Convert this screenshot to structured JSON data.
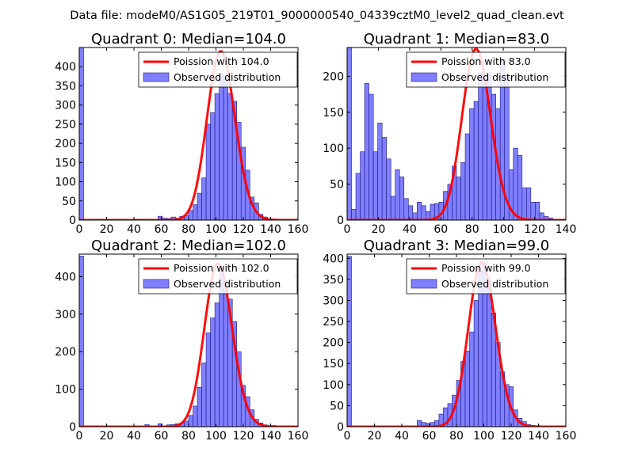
{
  "figure": {
    "suptitle": "Data file: modeM0/AS1G05_219T01_9000000540_04339cztM0_level2_quad_clean.evt"
  },
  "colors": {
    "fit_line": "#ff0000",
    "hist_fill": "#7f7fff",
    "hist_edge": "#1a1a80"
  },
  "chart_data": [
    {
      "type": "bar",
      "title": "Quadrant 0: Median=104.0",
      "xlim": [
        0,
        160
      ],
      "ylim": [
        0,
        450
      ],
      "xticks": [
        0,
        20,
        40,
        60,
        80,
        100,
        120,
        140,
        160
      ],
      "yticks": [
        0,
        50,
        100,
        150,
        200,
        250,
        300,
        350,
        400
      ],
      "legend": [
        "Poission with 104.0",
        "Observed distribution"
      ],
      "legend_position": "top-right",
      "poisson_mean": 104.0,
      "poisson_peak": 440,
      "bin_width": 3.2,
      "bins": [
        [
          0,
          450
        ],
        [
          57.6,
          10
        ],
        [
          60.8,
          5
        ],
        [
          64,
          4
        ],
        [
          67.2,
          8
        ],
        [
          70.4,
          5
        ],
        [
          73.6,
          10
        ],
        [
          76.8,
          12
        ],
        [
          80,
          25
        ],
        [
          83.2,
          40
        ],
        [
          86.4,
          70
        ],
        [
          89.6,
          110
        ],
        [
          92.8,
          250
        ],
        [
          96,
          280
        ],
        [
          99.2,
          330
        ],
        [
          102.4,
          380
        ],
        [
          105.6,
          370
        ],
        [
          108.8,
          330
        ],
        [
          112,
          310
        ],
        [
          115.2,
          255
        ],
        [
          118.4,
          190
        ],
        [
          121.6,
          130
        ],
        [
          124.8,
          60
        ],
        [
          128,
          45
        ],
        [
          131.2,
          15
        ],
        [
          134.4,
          8
        ],
        [
          137.6,
          4
        ],
        [
          140.8,
          2
        ]
      ]
    },
    {
      "type": "bar",
      "title": "Quadrant 1: Median=83.0",
      "xlim": [
        0,
        140
      ],
      "ylim": [
        0,
        240
      ],
      "xticks": [
        0,
        20,
        40,
        60,
        80,
        100,
        120,
        140
      ],
      "yticks": [
        0,
        50,
        100,
        150,
        200
      ],
      "legend": [
        "Poission with 83.0",
        "Observed distribution"
      ],
      "legend_position": "top-right",
      "poisson_mean": 83.0,
      "poisson_peak": 238,
      "bin_width": 2.8,
      "bins": [
        [
          0,
          240
        ],
        [
          2.8,
          15
        ],
        [
          5.6,
          65
        ],
        [
          8.4,
          95
        ],
        [
          11.2,
          190
        ],
        [
          14,
          175
        ],
        [
          16.8,
          95
        ],
        [
          19.6,
          135
        ],
        [
          22.4,
          115
        ],
        [
          25.2,
          85
        ],
        [
          28,
          33
        ],
        [
          30.8,
          70
        ],
        [
          33.6,
          60
        ],
        [
          36.4,
          30
        ],
        [
          39.2,
          20
        ],
        [
          42,
          10
        ],
        [
          44.8,
          25
        ],
        [
          47.6,
          20
        ],
        [
          50.4,
          12
        ],
        [
          53.2,
          22
        ],
        [
          56,
          23
        ],
        [
          58.8,
          25
        ],
        [
          61.6,
          40
        ],
        [
          64.4,
          50
        ],
        [
          67.2,
          75
        ],
        [
          70,
          60
        ],
        [
          72.8,
          80
        ],
        [
          75.6,
          120
        ],
        [
          78.4,
          155
        ],
        [
          81.2,
          165
        ],
        [
          84,
          205
        ],
        [
          86.8,
          195
        ],
        [
          89.6,
          205
        ],
        [
          92.4,
          175
        ],
        [
          95.2,
          155
        ],
        [
          98,
          225
        ],
        [
          100.8,
          200
        ],
        [
          103.6,
          70
        ],
        [
          106.4,
          100
        ],
        [
          109.2,
          90
        ],
        [
          112,
          45
        ],
        [
          114.8,
          45
        ],
        [
          117.6,
          25
        ],
        [
          120.4,
          25
        ],
        [
          123.2,
          10
        ],
        [
          126,
          5
        ],
        [
          128.8,
          3
        ]
      ]
    },
    {
      "type": "bar",
      "title": "Quadrant 2: Median=102.0",
      "xlim": [
        0,
        160
      ],
      "ylim": [
        0,
        460
      ],
      "xticks": [
        0,
        20,
        40,
        60,
        80,
        100,
        120,
        140,
        160
      ],
      "yticks": [
        0,
        100,
        200,
        300,
        400
      ],
      "legend": [
        "Poission with 102.0",
        "Observed distribution"
      ],
      "legend_position": "top-right",
      "poisson_mean": 102.0,
      "poisson_peak": 435,
      "bin_width": 3.2,
      "bins": [
        [
          0,
          455
        ],
        [
          48,
          6
        ],
        [
          57.6,
          8
        ],
        [
          64,
          5
        ],
        [
          67.2,
          6
        ],
        [
          70.4,
          8
        ],
        [
          73.6,
          10
        ],
        [
          76.8,
          15
        ],
        [
          80,
          30
        ],
        [
          83.2,
          55
        ],
        [
          86.4,
          105
        ],
        [
          89.6,
          170
        ],
        [
          92.8,
          250
        ],
        [
          96,
          290
        ],
        [
          99.2,
          330
        ],
        [
          102.4,
          420
        ],
        [
          105.6,
          390
        ],
        [
          108.8,
          340
        ],
        [
          112,
          280
        ],
        [
          115.2,
          200
        ],
        [
          118.4,
          110
        ],
        [
          121.6,
          80
        ],
        [
          124.8,
          45
        ],
        [
          128,
          20
        ],
        [
          131.2,
          10
        ],
        [
          134.4,
          5
        ],
        [
          140.8,
          3
        ]
      ]
    },
    {
      "type": "bar",
      "title": "Quadrant 3: Median=99.0",
      "xlim": [
        0,
        160
      ],
      "ylim": [
        0,
        410
      ],
      "xticks": [
        0,
        20,
        40,
        60,
        80,
        100,
        120,
        140,
        160
      ],
      "yticks": [
        0,
        50,
        100,
        150,
        200,
        250,
        300,
        350,
        400
      ],
      "legend": [
        "Poission with 99.0",
        "Observed distribution"
      ],
      "legend_position": "top-right",
      "poisson_mean": 99.0,
      "poisson_peak": 390,
      "bin_width": 3.2,
      "bins": [
        [
          0,
          405
        ],
        [
          51.2,
          15
        ],
        [
          54.4,
          10
        ],
        [
          57.6,
          8
        ],
        [
          60.8,
          10
        ],
        [
          64,
          15
        ],
        [
          67.2,
          30
        ],
        [
          70.4,
          45
        ],
        [
          73.6,
          55
        ],
        [
          76.8,
          75
        ],
        [
          80,
          110
        ],
        [
          83.2,
          155
        ],
        [
          86.4,
          180
        ],
        [
          89.6,
          225
        ],
        [
          92.8,
          300
        ],
        [
          96,
          370
        ],
        [
          99.2,
          390
        ],
        [
          102.4,
          350
        ],
        [
          105.6,
          270
        ],
        [
          108.8,
          200
        ],
        [
          112,
          130
        ],
        [
          115.2,
          100
        ],
        [
          118.4,
          95
        ],
        [
          121.6,
          40
        ],
        [
          124.8,
          20
        ],
        [
          128,
          12
        ],
        [
          131.2,
          5
        ],
        [
          134.4,
          3
        ]
      ]
    }
  ]
}
